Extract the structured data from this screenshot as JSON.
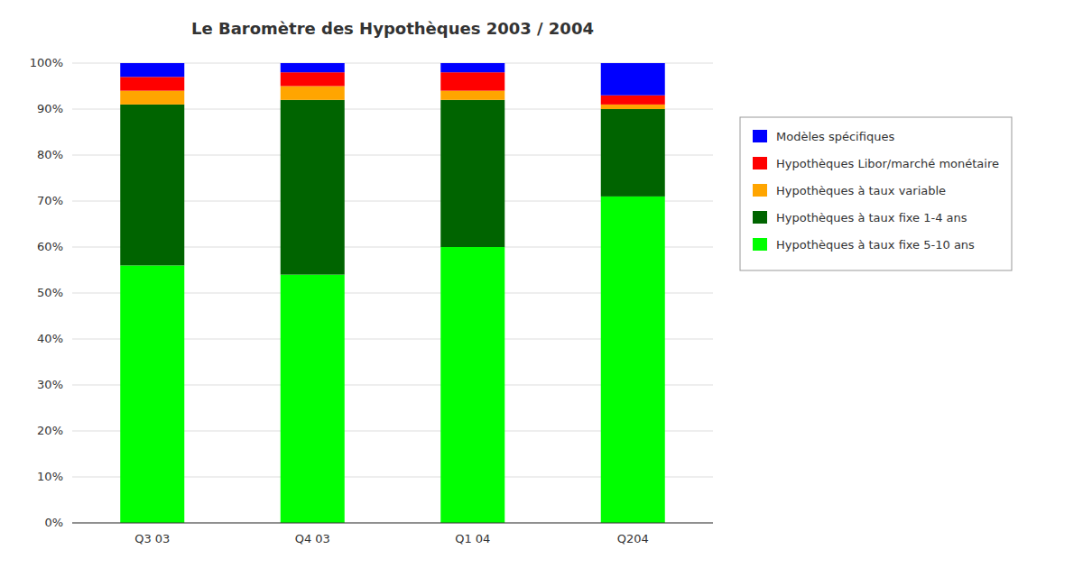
{
  "chart_data": {
    "type": "bar",
    "stacked": true,
    "title": "Le Baromètre des Hypothèques 2003 / 2004",
    "categories": [
      "Q3 03",
      "Q4 03",
      "Q1 04",
      "Q204"
    ],
    "series": [
      {
        "name": "Hypothèques à taux fixe 5-10 ans",
        "color": "#00FF00",
        "values": [
          56,
          54,
          60,
          71
        ]
      },
      {
        "name": "Hypothèques à taux fixe 1-4 ans",
        "color": "#006400",
        "values": [
          35,
          38,
          32,
          19
        ]
      },
      {
        "name": "Hypothèques à taux variable",
        "color": "#FFA500",
        "values": [
          3,
          3,
          2,
          1
        ]
      },
      {
        "name": "Hypothèques Libor/marché monétaire",
        "color": "#FF0000",
        "values": [
          3,
          3,
          4,
          2
        ]
      },
      {
        "name": "Modèles spécifiques",
        "color": "#0000FF",
        "values": [
          3,
          2,
          2,
          7
        ]
      }
    ],
    "ylim": [
      0,
      100
    ],
    "yticks": [
      {
        "value": 0,
        "label": "0%"
      },
      {
        "value": 10,
        "label": "10%"
      },
      {
        "value": 20,
        "label": "20%"
      },
      {
        "value": 30,
        "label": "30%"
      },
      {
        "value": 40,
        "label": "40%"
      },
      {
        "value": 50,
        "label": "50%"
      },
      {
        "value": 60,
        "label": "60%"
      },
      {
        "value": 70,
        "label": "70%"
      },
      {
        "value": 80,
        "label": "80%"
      },
      {
        "value": 90,
        "label": "90%"
      },
      {
        "value": 100,
        "label": "100%"
      }
    ],
    "grid": true,
    "legend": "right"
  }
}
